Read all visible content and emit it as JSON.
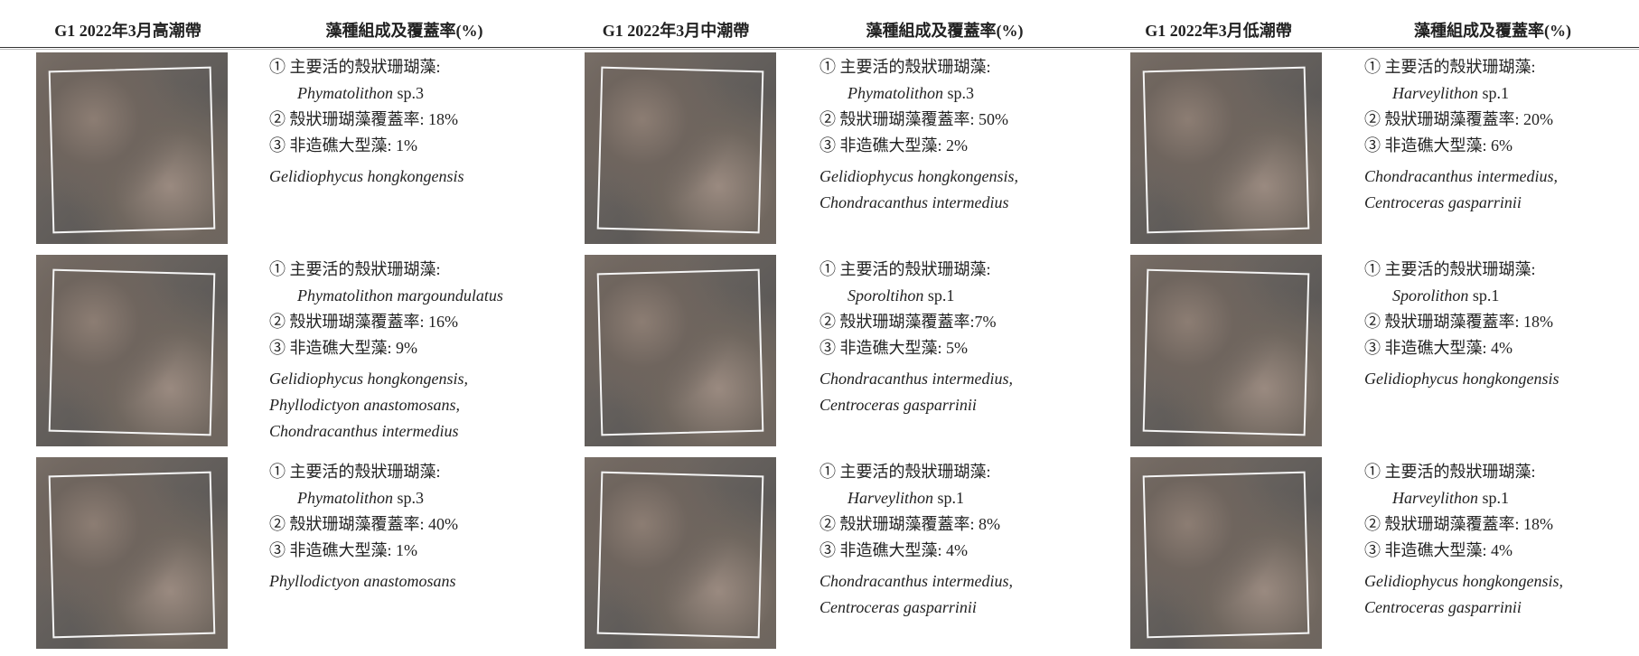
{
  "header": [
    "G1 2022年3月高潮帶",
    "藻種組成及覆蓋率(%)",
    "G1 2022年3月中潮帶",
    "藻種組成及覆蓋率(%)",
    "G1 2022年3月低潮帶",
    "藻種組成及覆蓋率(%)"
  ],
  "rows": [
    [
      {
        "line1": "① 主要活的殼狀珊瑚藻:",
        "genus": "Phymatolithon",
        "sp": "sp.3",
        "line2": "② 殼狀珊瑚藻覆蓋率: 18%",
        "line3": "③ 非造礁大型藻: 1%",
        "others": [
          "Gelidiophycus hongkongensis"
        ]
      },
      {
        "line1": "① 主要活的殼狀珊瑚藻:",
        "genus": "Phymatolithon",
        "sp": "sp.3",
        "line2": "② 殼狀珊瑚藻覆蓋率: 50%",
        "line3": "③ 非造礁大型藻: 2%",
        "others": [
          "Gelidiophycus hongkongensis,",
          "Chondracanthus intermedius"
        ]
      },
      {
        "line1": "① 主要活的殼狀珊瑚藻:",
        "genus": "Harveylithon",
        "sp": "sp.1",
        "line2": "② 殼狀珊瑚藻覆蓋率: 20%",
        "line3": "③ 非造礁大型藻: 6%",
        "others": [
          "Chondracanthus intermedius,",
          "Centroceras gasparrinii"
        ]
      }
    ],
    [
      {
        "line1": "① 主要活的殼狀珊瑚藻:",
        "genus": "Phymatolithon margoundulatus",
        "line2": "② 殼狀珊瑚藻覆蓋率: 16%",
        "line3": "③ 非造礁大型藻: 9%",
        "others": [
          "Gelidiophycus hongkongensis,",
          "Phyllodictyon anastomosans,",
          "Chondracanthus intermedius"
        ]
      },
      {
        "line1": "① 主要活的殼狀珊瑚藻:",
        "genus": "Sporoltihon",
        "sp": "sp.1",
        "line2": "② 殼狀珊瑚藻覆蓋率:7%",
        "line3": "③ 非造礁大型藻: 5%",
        "others": [
          "Chondracanthus intermedius,",
          "Centroceras gasparrinii"
        ]
      },
      {
        "line1": "① 主要活的殼狀珊瑚藻:",
        "genus": "Sporolithon",
        "sp": "sp.1",
        "line2": "② 殼狀珊瑚藻覆蓋率: 18%",
        "line3": "③ 非造礁大型藻: 4%",
        "others": [
          "Gelidiophycus hongkongensis"
        ]
      }
    ],
    [
      {
        "line1": "① 主要活的殼狀珊瑚藻:",
        "genus": "Phymatolithon",
        "sp": "sp.3",
        "line2": "② 殼狀珊瑚藻覆蓋率: 40%",
        "line3": "③ 非造礁大型藻: 1%",
        "others": [
          "Phyllodictyon anastomosans"
        ]
      },
      {
        "line1": "① 主要活的殼狀珊瑚藻:",
        "genus": "Harveylithon",
        "sp": "sp.1",
        "line2": "② 殼狀珊瑚藻覆蓋率: 8%",
        "line3": "③ 非造礁大型藻: 4%",
        "others": [
          "Chondracanthus intermedius,",
          "Centroceras gasparrinii"
        ]
      },
      {
        "line1": "① 主要活的殼狀珊瑚藻:",
        "genus": "Harveylithon",
        "sp": "sp.1",
        "line2": "② 殼狀珊瑚藻覆蓋率: 18%",
        "line3": "③ 非造礁大型藻: 4%",
        "others": [
          "Gelidiophycus hongkongensis,",
          "Centroceras gasparrinii"
        ]
      }
    ]
  ]
}
